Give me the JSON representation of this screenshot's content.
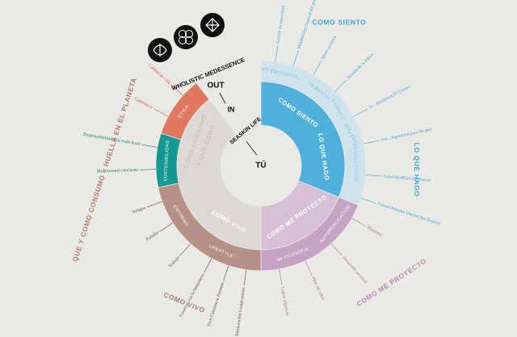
{
  "center": {
    "brand": "WHOLISTIC MEDESSENCE",
    "out": "OUT",
    "in": "IN",
    "life": "SEASKIN LIFE",
    "you": "TÚ"
  },
  "sections": [
    "COMO SIENTO",
    "LO QUE HAGO",
    "COMO ME PROYECTO",
    "COMO VIVO",
    "QUE Y COMO CONSUMO = HUELLA EN EL PLANETA"
  ],
  "inner_ring": [
    "COMO SIENTO",
    "LO QUE HAGO",
    "COMO ME PROYECTO",
    "COMO VIVO",
    "COMO CONSUMO",
    "Y QUÉ COMO"
  ],
  "outer_ring": [
    "YO EMOCIONAL",
    "YO MENTAL",
    "CUIDADO · BELLEZA",
    "ESTADO FÍSICO",
    "AUTOREALIZACIÓN",
    "MI FILOSOFÍA",
    "LIFESTYLE",
    "ENTORNO",
    "SOSTENIBILIDAD",
    "ÉTICA"
  ],
  "leaves": [
    "Gestión de emociones",
    "Mindfulness Gratitud del presente",
    "Mente positiva",
    "Sentido de la lógica",
    "In - Alcalinizar El Cuerpo",
    "Out - Superfood para Mi piel",
    "Salud ModDiet Alcalinizar",
    "Cuerpo Rituales Diarios Spa Deporte",
    "Bienestar",
    "Desarrollo personal",
    "Pilar sin saltar",
    "Lograr objetivos",
    "Restauración Compromisos",
    "Vivir Conciencia Presente",
    "Conectar con la Naturaleza",
    "Trabajo",
    "Familia",
    "Amigos",
    "Mi Consumo conciente",
    "Responsabilidad Fair trade Km0",
    "Coherencia",
    "Calidad de vida"
  ]
}
